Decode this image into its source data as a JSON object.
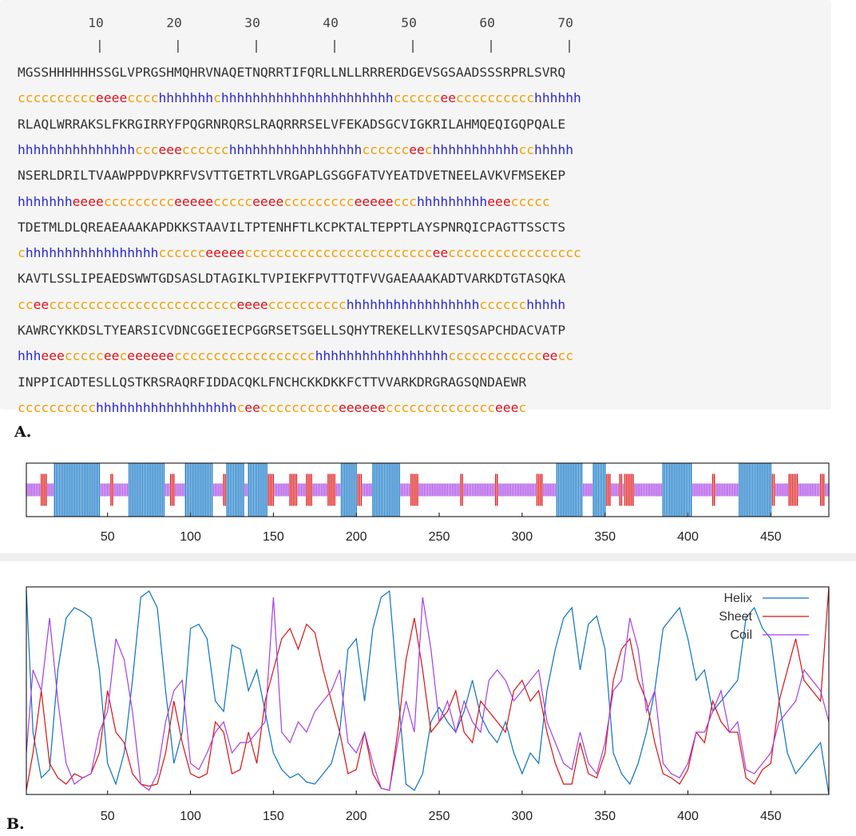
{
  "labels": {
    "panel_a": "A.",
    "panel_b": "B."
  },
  "ruler": {
    "numbers": "         10        20        30        40        50        60        70",
    "ticks": "          |         |         |         |         |         |         |"
  },
  "sequence_rows": [
    {
      "seq": "MGSSHHHHHHSSGLVPRGSHMQHRVNAQETNQRRTIFQRLLNLLRRRERDGEVSGSAADSSSRPRLSVRQ",
      "ss": "cccccccccceeeecccchhhhhhhchhhhhhhhhhhhhhhhhhhhhhcccccceecccccccccchhhhhh"
    },
    {
      "seq": "RLAQLWRRAKSLFKRGIRRYFPQGRNRQRSLRAQRRRSELVFEKADSGCVIGKRILAHMQEQIGQPQALE",
      "ss": "hhhhhhhhhhhhhhhccceeecccccchhhhhhhhhhhhhhhhhcccccceechhhhhhhhhhhcchhhhh"
    },
    {
      "seq": "NSERLDRILTVAAWPPDVPKRFVSVTTGETRTLVRGAPLGSGGFATVYEATDVETNEELAVKVFMSEKEP",
      "ss": "hhhhhhheeeeccccccccceeeeeccccceeeeccccccccceeeeeccchhhhhhhhheeeccccc"
    },
    {
      "seq": "TDETMLDLQREAEAAAKAPDKKSTAAVILTPTENHFTLKCPKTALTEPPTLAYSPNRQICPAGTTSSCTS",
      "ss": "chhhhhhhhhhhhhhhhhcccccceeeeecccccccccccccccccccccccceeccccccccccccccccc"
    },
    {
      "seq": "KAVTLSSLIPEAEDSWWTGDSASLDTAGIKLTVPIEKFPVTTQTFVVGAEAAAKADTVARKDTGTASQKA",
      "ss": "cceecccccccccccccccccccccccceeeecccccccccchhhhhhhhhhhhhhhhhcccccchhhhh"
    },
    {
      "seq": "KAWRCYKKDSLTYEARSICVDNCGGEIECPGGRSETSGELLSQHYTREKELLKVIESQSAPCHDACVATP",
      "ss": "hhheeeccccceeceeeeeecccccccccccccccccchhhhhhhhhhhhhhhhhcccccccccccceecc"
    },
    {
      "seq": "INPPICADTESLLQSTKRSRAQRFIDDACQKLFNCHCKKDKKFCTTVVARKDRGRAGSQNDAEWR",
      "ss": "cccccccccchhhhhhhhhhhhhhhhhhceecccccccccceeeeeecccccccccccccceeec"
    }
  ],
  "chart_data": [
    {
      "type": "bar",
      "title": "",
      "xlabel": "",
      "ylabel": "",
      "xlim": [
        1,
        485
      ],
      "xticks": [
        "50",
        "100",
        "150",
        "200",
        "250",
        "300",
        "350",
        "400",
        "450"
      ],
      "colors": {
        "helix": "#0b72c4",
        "sheet": "#dd1111",
        "coil": "#a63ee6"
      },
      "segments": [
        {
          "type": "coil",
          "start": 1,
          "end": 9
        },
        {
          "type": "sheet",
          "start": 10,
          "end": 13
        },
        {
          "type": "coil",
          "start": 14,
          "end": 17
        },
        {
          "type": "helix",
          "start": 18,
          "end": 45
        },
        {
          "type": "coil",
          "start": 46,
          "end": 51
        },
        {
          "type": "sheet",
          "start": 52,
          "end": 53
        },
        {
          "type": "coil",
          "start": 54,
          "end": 62
        },
        {
          "type": "helix",
          "start": 63,
          "end": 84
        },
        {
          "type": "coil",
          "start": 85,
          "end": 87
        },
        {
          "type": "sheet",
          "start": 88,
          "end": 90
        },
        {
          "type": "coil",
          "start": 91,
          "end": 96
        },
        {
          "type": "helix",
          "start": 97,
          "end": 113
        },
        {
          "type": "coil",
          "start": 114,
          "end": 119
        },
        {
          "type": "sheet",
          "start": 120,
          "end": 121
        },
        {
          "type": "helix",
          "start": 122,
          "end": 132
        },
        {
          "type": "coil",
          "start": 133,
          "end": 134
        },
        {
          "type": "helix",
          "start": 135,
          "end": 146
        },
        {
          "type": "sheet",
          "start": 147,
          "end": 150
        },
        {
          "type": "coil",
          "start": 151,
          "end": 159
        },
        {
          "type": "sheet",
          "start": 160,
          "end": 164
        },
        {
          "type": "coil",
          "start": 165,
          "end": 169
        },
        {
          "type": "sheet",
          "start": 170,
          "end": 173
        },
        {
          "type": "coil",
          "start": 174,
          "end": 182
        },
        {
          "type": "sheet",
          "start": 183,
          "end": 187
        },
        {
          "type": "coil",
          "start": 188,
          "end": 190
        },
        {
          "type": "helix",
          "start": 191,
          "end": 200
        },
        {
          "type": "sheet",
          "start": 201,
          "end": 203
        },
        {
          "type": "coil",
          "start": 204,
          "end": 209
        },
        {
          "type": "helix",
          "start": 210,
          "end": 226
        },
        {
          "type": "coil",
          "start": 227,
          "end": 232
        },
        {
          "type": "sheet",
          "start": 233,
          "end": 237
        },
        {
          "type": "coil",
          "start": 238,
          "end": 262
        },
        {
          "type": "sheet",
          "start": 263,
          "end": 264
        },
        {
          "type": "coil",
          "start": 265,
          "end": 283
        },
        {
          "type": "sheet",
          "start": 284,
          "end": 285
        },
        {
          "type": "coil",
          "start": 286,
          "end": 308
        },
        {
          "type": "sheet",
          "start": 309,
          "end": 312
        },
        {
          "type": "coil",
          "start": 313,
          "end": 320
        },
        {
          "type": "helix",
          "start": 321,
          "end": 336
        },
        {
          "type": "coil",
          "start": 337,
          "end": 342
        },
        {
          "type": "helix",
          "start": 343,
          "end": 350
        },
        {
          "type": "sheet",
          "start": 351,
          "end": 353
        },
        {
          "type": "coil",
          "start": 354,
          "end": 358
        },
        {
          "type": "sheet",
          "start": 359,
          "end": 360
        },
        {
          "type": "coil",
          "start": 361,
          "end": 361
        },
        {
          "type": "sheet",
          "start": 362,
          "end": 367
        },
        {
          "type": "coil",
          "start": 368,
          "end": 384
        },
        {
          "type": "helix",
          "start": 385,
          "end": 402
        },
        {
          "type": "coil",
          "start": 403,
          "end": 414
        },
        {
          "type": "sheet",
          "start": 415,
          "end": 416
        },
        {
          "type": "coil",
          "start": 417,
          "end": 430
        },
        {
          "type": "helix",
          "start": 431,
          "end": 450
        },
        {
          "type": "sheet",
          "start": 451,
          "end": 452
        },
        {
          "type": "coil",
          "start": 453,
          "end": 460
        },
        {
          "type": "sheet",
          "start": 461,
          "end": 466
        },
        {
          "type": "coil",
          "start": 467,
          "end": 479
        },
        {
          "type": "sheet",
          "start": 480,
          "end": 482
        },
        {
          "type": "coil",
          "start": 483,
          "end": 485
        }
      ]
    },
    {
      "type": "line",
      "title": "",
      "xlabel": "",
      "ylabel": "",
      "xlim": [
        1,
        485
      ],
      "ylim": [
        0,
        1
      ],
      "xticks": [
        "50",
        "100",
        "150",
        "200",
        "250",
        "300",
        "350",
        "400",
        "450"
      ],
      "legend_position": "top-right",
      "series": [
        {
          "name": "Helix",
          "color": "#0b72c4",
          "x": [
            1,
            5,
            10,
            15,
            20,
            25,
            30,
            35,
            40,
            45,
            50,
            55,
            60,
            65,
            70,
            75,
            80,
            85,
            90,
            95,
            100,
            105,
            110,
            115,
            120,
            125,
            130,
            135,
            140,
            145,
            150,
            155,
            160,
            165,
            170,
            175,
            180,
            185,
            190,
            195,
            200,
            205,
            210,
            215,
            220,
            225,
            230,
            235,
            240,
            245,
            250,
            255,
            260,
            265,
            270,
            275,
            280,
            285,
            290,
            295,
            300,
            305,
            310,
            315,
            320,
            325,
            330,
            335,
            340,
            345,
            350,
            355,
            360,
            365,
            370,
            375,
            380,
            385,
            390,
            395,
            400,
            405,
            410,
            415,
            420,
            425,
            430,
            435,
            440,
            445,
            450,
            455,
            460,
            465,
            470,
            475,
            480,
            485
          ],
          "y": [
            0.98,
            0.3,
            0.08,
            0.12,
            0.6,
            0.85,
            0.9,
            0.88,
            0.85,
            0.6,
            0.15,
            0.05,
            0.2,
            0.55,
            0.95,
            0.98,
            0.9,
            0.5,
            0.15,
            0.3,
            0.8,
            0.82,
            0.75,
            0.45,
            0.4,
            0.72,
            0.7,
            0.5,
            0.6,
            0.4,
            0.2,
            0.12,
            0.08,
            0.1,
            0.06,
            0.05,
            0.1,
            0.15,
            0.3,
            0.7,
            0.75,
            0.45,
            0.8,
            0.95,
            0.98,
            0.5,
            0.05,
            0.02,
            0.1,
            0.35,
            0.42,
            0.35,
            0.3,
            0.4,
            0.55,
            0.38,
            0.3,
            0.25,
            0.35,
            0.2,
            0.1,
            0.2,
            0.15,
            0.5,
            0.7,
            0.85,
            0.9,
            0.6,
            0.82,
            0.86,
            0.7,
            0.2,
            0.1,
            0.05,
            0.15,
            0.3,
            0.5,
            0.8,
            0.85,
            0.9,
            0.75,
            0.55,
            0.6,
            0.4,
            0.45,
            0.5,
            0.55,
            0.85,
            0.9,
            0.8,
            0.75,
            0.45,
            0.2,
            0.1,
            0.15,
            0.2,
            0.25,
            0.0
          ]
        },
        {
          "name": "Sheet",
          "color": "#dd1111",
          "x": [
            1,
            5,
            10,
            15,
            20,
            25,
            30,
            35,
            40,
            45,
            50,
            55,
            60,
            65,
            70,
            75,
            80,
            85,
            90,
            95,
            100,
            105,
            110,
            115,
            120,
            125,
            130,
            135,
            140,
            145,
            150,
            155,
            160,
            165,
            170,
            175,
            180,
            185,
            190,
            195,
            200,
            205,
            210,
            215,
            220,
            225,
            230,
            235,
            240,
            245,
            250,
            255,
            260,
            265,
            270,
            275,
            280,
            285,
            290,
            295,
            300,
            305,
            310,
            315,
            320,
            325,
            330,
            335,
            340,
            345,
            350,
            355,
            360,
            365,
            370,
            375,
            380,
            385,
            390,
            395,
            400,
            405,
            410,
            415,
            420,
            425,
            430,
            435,
            440,
            445,
            450,
            455,
            460,
            465,
            470,
            475,
            480,
            485
          ],
          "y": [
            0.02,
            0.2,
            0.5,
            0.15,
            0.08,
            0.05,
            0.1,
            0.08,
            0.1,
            0.2,
            0.5,
            0.3,
            0.25,
            0.1,
            0.05,
            0.04,
            0.05,
            0.2,
            0.45,
            0.25,
            0.1,
            0.08,
            0.1,
            0.35,
            0.3,
            0.1,
            0.12,
            0.3,
            0.15,
            0.45,
            0.6,
            0.75,
            0.8,
            0.7,
            0.82,
            0.78,
            0.6,
            0.45,
            0.3,
            0.1,
            0.12,
            0.3,
            0.1,
            0.03,
            0.02,
            0.3,
            0.65,
            0.85,
            0.6,
            0.3,
            0.35,
            0.4,
            0.5,
            0.3,
            0.25,
            0.45,
            0.4,
            0.35,
            0.3,
            0.5,
            0.55,
            0.45,
            0.5,
            0.3,
            0.15,
            0.05,
            0.05,
            0.25,
            0.1,
            0.08,
            0.2,
            0.55,
            0.7,
            0.75,
            0.55,
            0.45,
            0.25,
            0.1,
            0.08,
            0.05,
            0.12,
            0.3,
            0.25,
            0.45,
            0.35,
            0.3,
            0.3,
            0.08,
            0.05,
            0.12,
            0.15,
            0.45,
            0.6,
            0.75,
            0.55,
            0.5,
            0.45,
            1.0
          ]
        },
        {
          "name": "Coil",
          "color": "#a63ee6",
          "x": [
            1,
            5,
            10,
            15,
            20,
            25,
            30,
            35,
            40,
            45,
            50,
            55,
            60,
            65,
            70,
            75,
            80,
            85,
            90,
            95,
            100,
            105,
            110,
            115,
            120,
            125,
            130,
            135,
            140,
            145,
            150,
            155,
            160,
            165,
            170,
            175,
            180,
            185,
            190,
            195,
            200,
            205,
            210,
            215,
            220,
            225,
            230,
            235,
            240,
            245,
            250,
            255,
            260,
            265,
            270,
            275,
            280,
            285,
            290,
            295,
            300,
            305,
            310,
            315,
            320,
            325,
            330,
            335,
            340,
            345,
            350,
            355,
            360,
            365,
            370,
            375,
            380,
            385,
            390,
            395,
            400,
            405,
            410,
            415,
            420,
            425,
            430,
            435,
            440,
            445,
            450,
            455,
            460,
            465,
            470,
            475,
            480,
            485
          ],
          "y": [
            0.2,
            0.6,
            0.5,
            0.85,
            0.45,
            0.15,
            0.05,
            0.08,
            0.1,
            0.3,
            0.4,
            0.75,
            0.65,
            0.4,
            0.05,
            0.02,
            0.1,
            0.35,
            0.5,
            0.55,
            0.15,
            0.12,
            0.2,
            0.3,
            0.35,
            0.2,
            0.25,
            0.25,
            0.3,
            0.35,
            0.95,
            0.3,
            0.25,
            0.35,
            0.3,
            0.4,
            0.45,
            0.5,
            0.6,
            0.25,
            0.2,
            0.3,
            0.15,
            0.03,
            0.02,
            0.25,
            0.45,
            0.3,
            0.95,
            0.7,
            0.35,
            0.45,
            0.3,
            0.45,
            0.35,
            0.3,
            0.55,
            0.6,
            0.55,
            0.45,
            0.5,
            0.55,
            0.6,
            0.35,
            0.25,
            0.15,
            0.12,
            0.3,
            0.15,
            0.1,
            0.25,
            0.5,
            0.55,
            0.85,
            0.7,
            0.4,
            0.5,
            0.15,
            0.1,
            0.08,
            0.15,
            0.3,
            0.3,
            0.4,
            0.5,
            0.3,
            0.35,
            0.12,
            0.1,
            0.15,
            0.2,
            0.35,
            0.4,
            0.45,
            0.6,
            0.55,
            0.5,
            0.35
          ]
        }
      ]
    }
  ]
}
